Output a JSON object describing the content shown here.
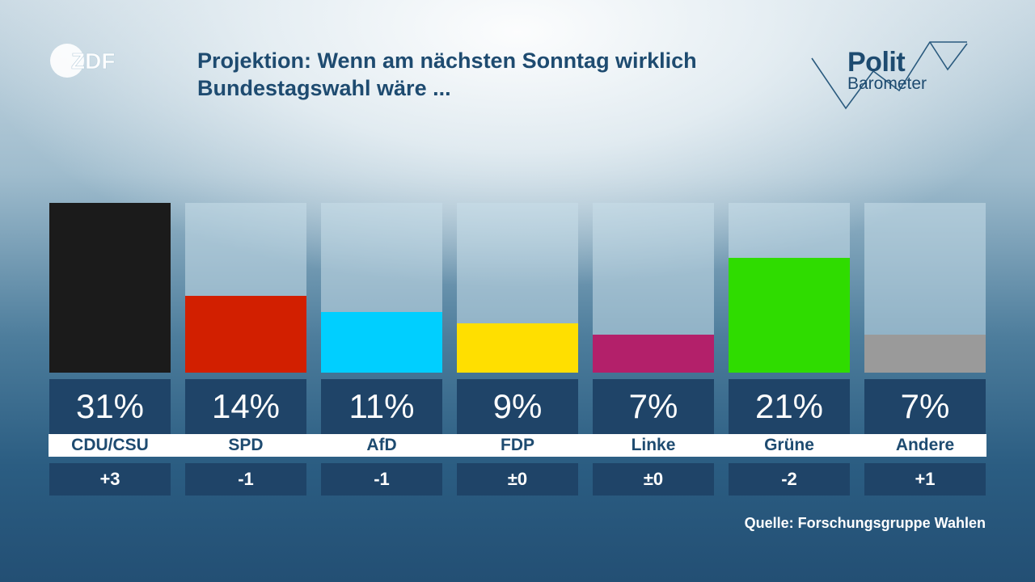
{
  "broadcaster": "ZDF",
  "header": {
    "title_line1": "Projektion: Wenn am nächsten Sonntag wirklich",
    "title_line2": "Bundestagswahl wäre ..."
  },
  "brand": {
    "line1": "Polit",
    "line2": "Barometer"
  },
  "source": "Quelle: Forschungsgruppe Wahlen",
  "chart_data": {
    "type": "bar",
    "title": "Projektion: Wenn am nächsten Sonntag wirklich Bundestagswahl wäre ...",
    "categories": [
      "CDU/CSU",
      "SPD",
      "AfD",
      "FDP",
      "Linke",
      "Grüne",
      "Andere"
    ],
    "values": [
      31,
      14,
      11,
      9,
      7,
      21,
      7
    ],
    "value_labels": [
      "31%",
      "14%",
      "11%",
      "9%",
      "7%",
      "21%",
      "7%"
    ],
    "changes": [
      "+3",
      "-1",
      "-1",
      "±0",
      "±0",
      "-2",
      "+1"
    ],
    "colors": [
      "#1b1b1b",
      "#d21f00",
      "#00cfff",
      "#ffdf00",
      "#b3206a",
      "#2fdc00",
      "#9a9a9a"
    ],
    "unit": "%",
    "ylim": [
      0,
      31
    ]
  }
}
